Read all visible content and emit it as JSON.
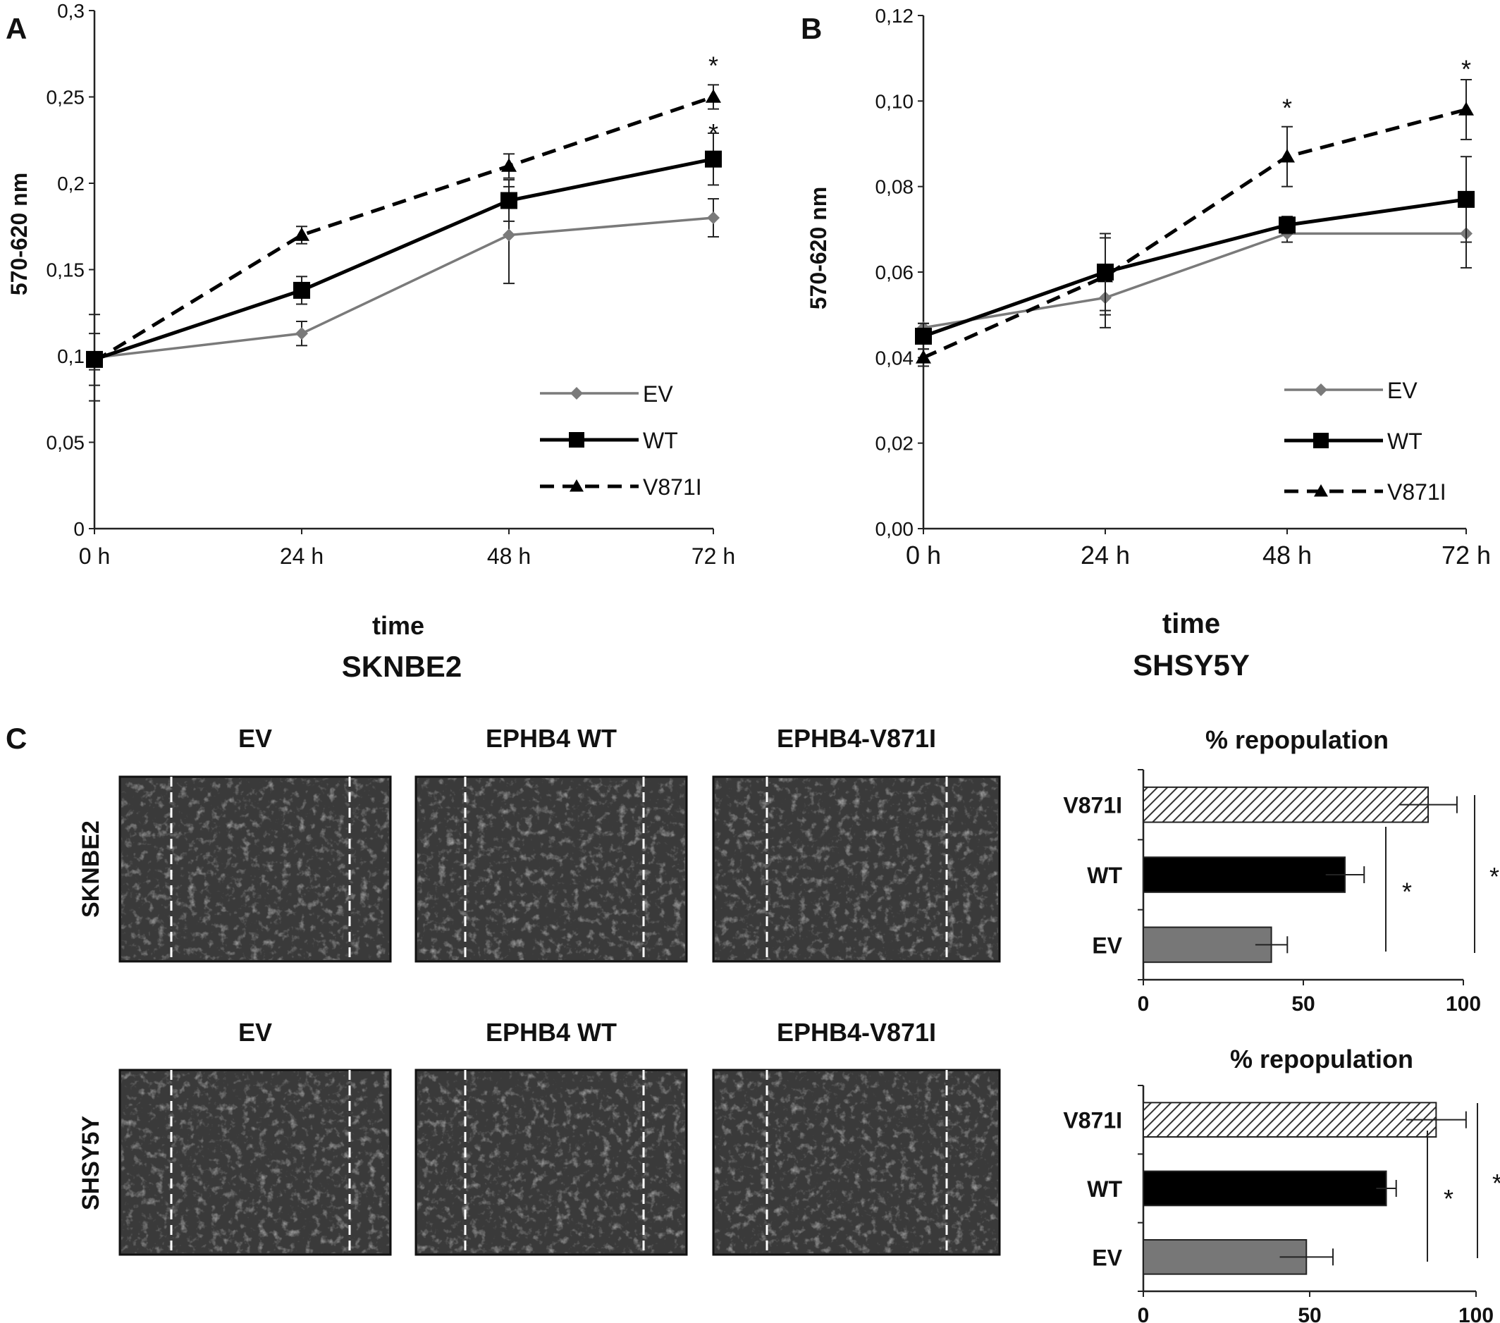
{
  "colors": {
    "ev": "#7a7a7a",
    "wt": "#000000",
    "v871i": "#000000",
    "ev_bar": "#777777",
    "wt_bar": "#000000",
    "v871i_bar_hatch": "#333333",
    "micrograph": "#3a3a3a"
  },
  "panels": {
    "A": {
      "letter": "A"
    },
    "B": {
      "letter": "B"
    },
    "C": {
      "letter": "C"
    }
  },
  "micrographs": {
    "rows": [
      "SKNBE2",
      "SHSY5Y"
    ],
    "cols": [
      "EV",
      "EPHB4  WT",
      "EPHB4-V871I"
    ]
  },
  "chart_data": [
    {
      "id": "A",
      "type": "line",
      "title": "SKNBE2",
      "xlabel": "time",
      "ylabel": "570-620  nm",
      "categories": [
        "0 h",
        "24 h",
        "48 h",
        "72 h"
      ],
      "yticks": [
        "0",
        "0,05",
        "0,1",
        "0,15",
        "0,2",
        "0,25",
        "0,3"
      ],
      "ylim": [
        0,
        0.3
      ],
      "series": [
        {
          "name": "EV",
          "marker": "diamond",
          "dash": "solid",
          "values": [
            0.099,
            0.113,
            0.17,
            0.18
          ],
          "errors": [
            0.025,
            0.007,
            0.028,
            0.011
          ]
        },
        {
          "name": "WT",
          "marker": "square",
          "dash": "solid",
          "values": [
            0.098,
            0.138,
            0.19,
            0.214
          ],
          "errors": [
            0.015,
            0.008,
            0.012,
            0.015
          ]
        },
        {
          "name": "V871I",
          "marker": "triangle",
          "dash": "dashed",
          "values": [
            0.097,
            0.17,
            0.21,
            0.25
          ],
          "errors": [
            0.005,
            0.005,
            0.007,
            0.007
          ]
        }
      ],
      "annotations": [
        {
          "text": "*",
          "x": "72 h",
          "y": 0.272
        },
        {
          "text": "*",
          "x": "72 h",
          "y": 0.233
        }
      ],
      "legend": "bottom-right"
    },
    {
      "id": "B",
      "type": "line",
      "title": "SHSY5Y",
      "xlabel": "time",
      "ylabel": "570-620  nm",
      "categories": [
        "0 h",
        "24 h",
        "48 h",
        "72 h"
      ],
      "yticks": [
        "0,00",
        "0,02",
        "0,04",
        "0,06",
        "0,08",
        "0,10",
        "0,12"
      ],
      "ylim": [
        0,
        0.12
      ],
      "series": [
        {
          "name": "EV",
          "marker": "diamond",
          "dash": "solid",
          "values": [
            0.047,
            0.054,
            0.069,
            0.069
          ],
          "errors": [
            0.001,
            0.007,
            0.002,
            0.008
          ]
        },
        {
          "name": "WT",
          "marker": "square",
          "dash": "solid",
          "values": [
            0.045,
            0.06,
            0.071,
            0.077
          ],
          "errors": [
            0.003,
            0.009,
            0.002,
            0.01
          ]
        },
        {
          "name": "V871I",
          "marker": "triangle",
          "dash": "dashed",
          "values": [
            0.04,
            0.059,
            0.087,
            0.098
          ],
          "errors": [
            0.002,
            0.009,
            0.007,
            0.007
          ]
        }
      ],
      "annotations": [
        {
          "text": "*",
          "x": "48 h",
          "y": 0.1
        },
        {
          "text": "*",
          "x": "72 h",
          "y": 0.109
        }
      ],
      "legend": "bottom-right"
    },
    {
      "id": "C-top",
      "type": "bar",
      "orientation": "horizontal",
      "title": "% repopulation",
      "categories": [
        "V871I",
        "WT",
        "EV"
      ],
      "xticks": [
        "0",
        "50",
        "100"
      ],
      "xlim": [
        0,
        100
      ],
      "values": [
        89,
        63,
        40
      ],
      "errors": [
        9,
        6,
        5
      ],
      "significance": [
        {
          "between": [
            "WT",
            "EV"
          ],
          "label": "*"
        },
        {
          "between": [
            "V871I",
            "EV"
          ],
          "label": "*"
        }
      ]
    },
    {
      "id": "C-bottom",
      "type": "bar",
      "orientation": "horizontal",
      "title": "% repopulation",
      "categories": [
        "V871I",
        "WT",
        "EV"
      ],
      "xticks": [
        "0",
        "50",
        "100"
      ],
      "xlim": [
        0,
        100
      ],
      "values": [
        88,
        73,
        49
      ],
      "errors": [
        9,
        3,
        8
      ],
      "significance": [
        {
          "between": [
            "WT",
            "EV"
          ],
          "label": "*"
        },
        {
          "between": [
            "V871I",
            "EV"
          ],
          "label": "*"
        }
      ]
    }
  ]
}
